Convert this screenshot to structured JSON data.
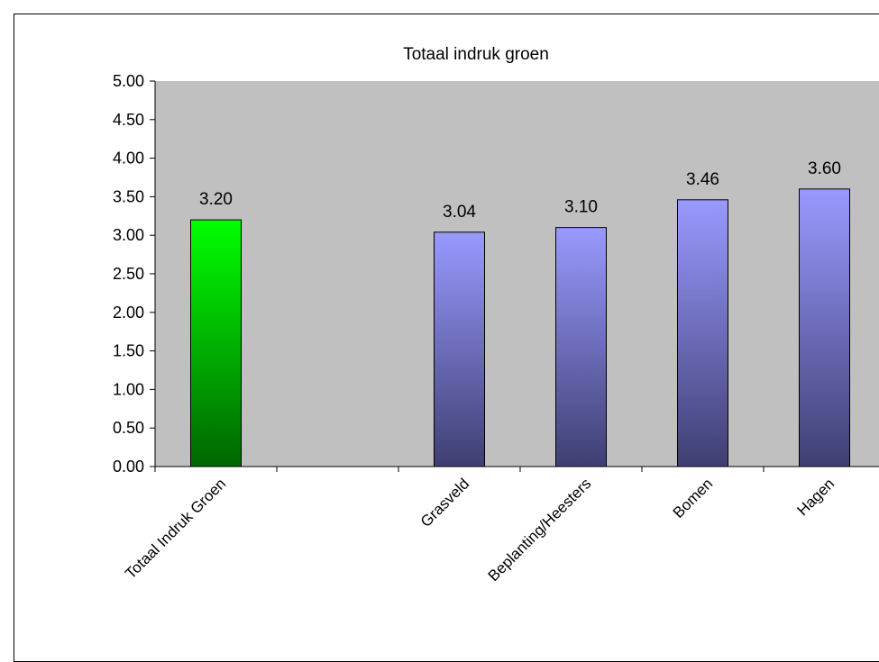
{
  "chart_data": {
    "type": "bar",
    "title": "Totaal indruk groen",
    "categories": [
      "Totaal Indruk Groen",
      "",
      "Grasveld",
      "Beplanting/Heesters",
      "Bomen",
      "Hagen"
    ],
    "values": [
      3.2,
      null,
      3.04,
      3.1,
      3.46,
      3.6
    ],
    "value_labels": [
      "3.20",
      "",
      "3.04",
      "3.10",
      "3.46",
      "3.60"
    ],
    "bar_colors": [
      "green-gradient",
      null,
      "blue-gradient",
      "blue-gradient",
      "blue-gradient",
      "blue-gradient"
    ],
    "ylim": [
      0,
      5
    ],
    "yticks": [
      "0.00",
      "0.50",
      "1.00",
      "1.50",
      "2.00",
      "2.50",
      "3.00",
      "3.50",
      "4.00",
      "4.50",
      "5.00"
    ],
    "xlabel": "",
    "ylabel": "",
    "grid": false,
    "legend": false,
    "plot_background": "#c0c0c0"
  }
}
